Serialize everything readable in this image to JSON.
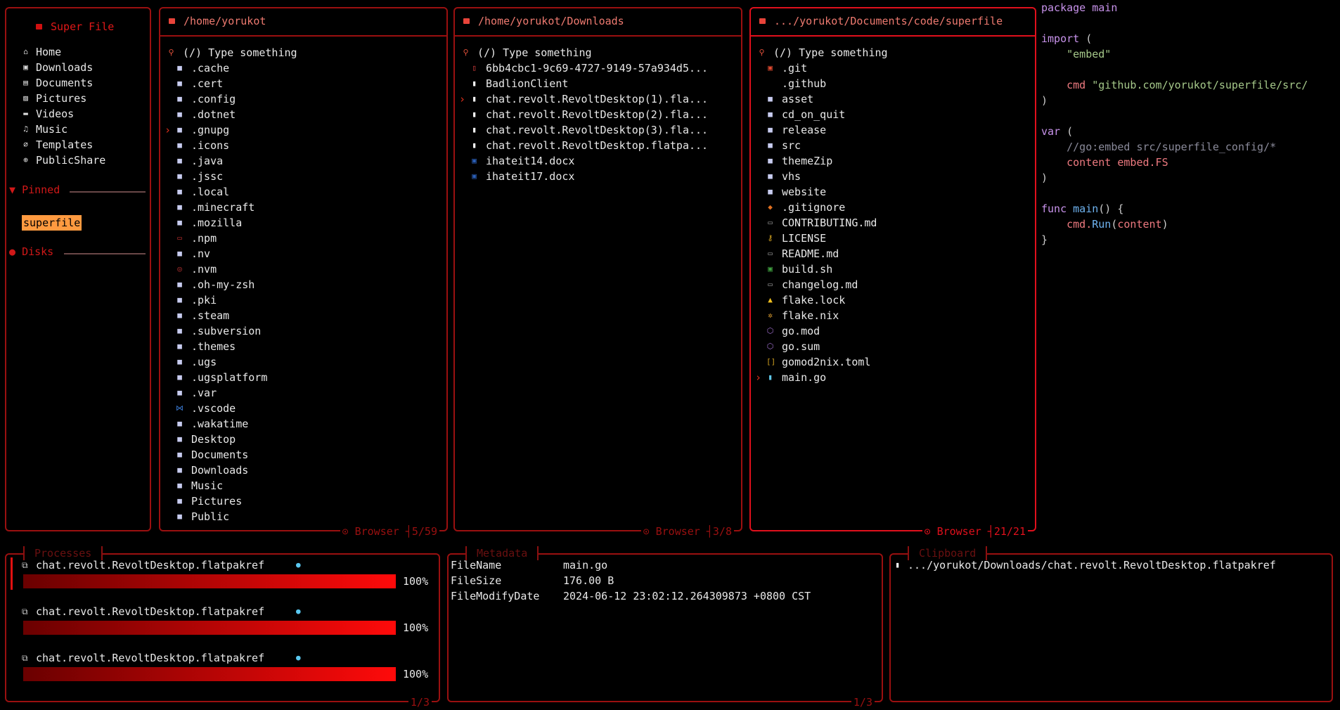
{
  "sidebar": {
    "title": "Super File",
    "items": [
      {
        "label": "Home",
        "icon": "home-icon",
        "glyph": "⌂"
      },
      {
        "label": "Downloads",
        "icon": "download-icon",
        "glyph": "▣"
      },
      {
        "label": "Documents",
        "icon": "document-icon",
        "glyph": "▤"
      },
      {
        "label": "Pictures",
        "icon": "picture-icon",
        "glyph": "▨"
      },
      {
        "label": "Videos",
        "icon": "video-icon",
        "glyph": "▬"
      },
      {
        "label": "Music",
        "icon": "music-icon",
        "glyph": "♫"
      },
      {
        "label": "Templates",
        "icon": "paperclip-icon",
        "glyph": "⌀"
      },
      {
        "label": "PublicShare",
        "icon": "globe-icon",
        "glyph": "⊕"
      }
    ],
    "pinned_label": "Pinned",
    "pinned": [
      "superfile"
    ],
    "disks_label": "Disks"
  },
  "search_placeholder": "(/) Type something",
  "panels": [
    {
      "title": "/home/yorukot",
      "footer_label": "Browser",
      "count": "5/59",
      "focused": false,
      "cursor": 4,
      "files": [
        ".cache",
        ".cert",
        ".config",
        ".dotnet",
        ".gnupg",
        ".icons",
        ".java",
        ".jssc",
        ".local",
        ".minecraft",
        ".mozilla",
        ".npm",
        ".nv",
        ".nvm",
        ".oh-my-zsh",
        ".pki",
        ".steam",
        ".subversion",
        ".themes",
        ".ugs",
        ".ugsplatform",
        ".var",
        ".vscode",
        ".wakatime",
        "Desktop",
        "Documents",
        "Downloads",
        "Music",
        "Pictures",
        "Public"
      ],
      "icons": {
        ".npm": [
          "npm-icon",
          "▭",
          "#c03030"
        ],
        ".nvm": [
          "node-icon",
          "◎",
          "#b03030"
        ],
        ".vscode": [
          "vscode-icon",
          "⋈",
          "#3a7bd5"
        ]
      }
    },
    {
      "title": "/home/yorukot/Downloads",
      "footer_label": "Browser",
      "count": "3/8",
      "focused": false,
      "cursor": 2,
      "files": [
        "6bb4cbc1-9c69-4727-9149-57a934d5...",
        "BadlionClient",
        "chat.revolt.RevoltDesktop(1).fla...",
        "chat.revolt.RevoltDesktop(2).fla...",
        "chat.revolt.RevoltDesktop(3).fla...",
        "chat.revolt.RevoltDesktop.flatpa...",
        "ihateit14.docx",
        "ihateit17.docx"
      ],
      "icons": {
        "6bb4cbc1-9c69-4727-9149-57a934d5...": [
          "pdf-icon",
          "▯",
          "#e04040"
        ],
        "BadlionClient": [
          "file-icon",
          "▮",
          "#ffffff"
        ],
        "chat.revolt.RevoltDesktop(1).fla...": [
          "file-icon",
          "▮",
          "#ffffff"
        ],
        "chat.revolt.RevoltDesktop(2).fla...": [
          "file-icon",
          "▮",
          "#ffffff"
        ],
        "chat.revolt.RevoltDesktop(3).fla...": [
          "file-icon",
          "▮",
          "#ffffff"
        ],
        "chat.revolt.RevoltDesktop.flatpa...": [
          "file-icon",
          "▮",
          "#ffffff"
        ],
        "ihateit14.docx": [
          "word-icon",
          "▣",
          "#2b5fb8"
        ],
        "ihateit17.docx": [
          "word-icon",
          "▣",
          "#2b5fb8"
        ]
      }
    },
    {
      "title": ".../yorukot/Documents/code/superfile",
      "footer_label": "Browser",
      "count": "21/21",
      "focused": true,
      "cursor": 20,
      "files": [
        ".git",
        ".github",
        "asset",
        "cd_on_quit",
        "release",
        "src",
        "themeZip",
        "vhs",
        "website",
        ".gitignore",
        "CONTRIBUTING.md",
        "LICENSE",
        "README.md",
        "build.sh",
        "changelog.md",
        "flake.lock",
        "flake.nix",
        "go.mod",
        "go.sum",
        "gomod2nix.toml",
        "main.go"
      ],
      "icons": {
        ".git": [
          "git-folder-icon",
          "▣",
          "#e04a30"
        ],
        ".github": [
          "github-icon",
          " ",
          "#fff"
        ],
        ".gitignore": [
          "git-icon",
          "◆",
          "#e07020"
        ],
        "CONTRIBUTING.md": [
          "markdown-icon",
          "▭",
          "#9a9a9a"
        ],
        "LICENSE": [
          "key-icon",
          "⚷",
          "#d0a020"
        ],
        "README.md": [
          "markdown-icon",
          "▭",
          "#9a9a9a"
        ],
        "build.sh": [
          "terminal-icon",
          "▣",
          "#40a040"
        ],
        "changelog.md": [
          "markdown-icon",
          "▭",
          "#9a9a9a"
        ],
        "flake.lock": [
          "lock-icon",
          "▲",
          "#f0c020"
        ],
        "flake.nix": [
          "nix-icon",
          "✲",
          "#e0a030"
        ],
        "go.mod": [
          "go-mod-icon",
          "⬡",
          "#a070d0"
        ],
        "go.sum": [
          "go-sum-icon",
          "⬡",
          "#a070d0"
        ],
        "gomod2nix.toml": [
          "toml-icon",
          "[]",
          "#d0a020"
        ],
        "main.go": [
          "go-icon",
          "▮",
          "#60c8e8"
        ]
      }
    }
  ],
  "folder_color": "#c8ccf0",
  "preview": [
    [
      [
        "package ",
        "#c792ea"
      ],
      [
        "main",
        "#c792ea"
      ]
    ],
    [],
    [
      [
        "import ",
        "#c792ea"
      ],
      [
        "(",
        "#ccc"
      ]
    ],
    [
      [
        "    \"embed\"",
        "#a6c98a"
      ]
    ],
    [],
    [
      [
        "    cmd ",
        "#ee7a80"
      ],
      [
        "\"github.com/yorukot/superfile/src/",
        "#a6c98a"
      ]
    ],
    [
      [
        ")",
        "#ccc"
      ]
    ],
    [],
    [
      [
        "var ",
        "#c792ea"
      ],
      [
        "(",
        "#ccc"
      ]
    ],
    [
      [
        "    //go:embed src/superfile_config/*",
        "#8a8a9a"
      ]
    ],
    [
      [
        "    content ",
        "#ee7a80"
      ],
      [
        "embed.FS",
        "#ee7a80"
      ]
    ],
    [
      [
        ")",
        "#ccc"
      ]
    ],
    [],
    [
      [
        "func ",
        "#c792ea"
      ],
      [
        "main",
        "#6fb3f0"
      ],
      [
        "() {",
        "#ccc"
      ]
    ],
    [
      [
        "    cmd.",
        "#ee7a80"
      ],
      [
        "Run",
        "#6fb3f0"
      ],
      [
        "(",
        "#ccc"
      ],
      [
        "content",
        "#ee7a80"
      ],
      [
        ")",
        "#ccc"
      ]
    ],
    [
      [
        "}",
        "#ccc"
      ]
    ]
  ],
  "processes": {
    "title": "Processes",
    "count": "1/3",
    "items": [
      {
        "name": "chat.revolt.RevoltDesktop.flatpakref",
        "progress": 100,
        "label": "100%"
      },
      {
        "name": "chat.revolt.RevoltDesktop.flatpakref",
        "progress": 100,
        "label": "100%"
      },
      {
        "name": "chat.revolt.RevoltDesktop.flatpakref",
        "progress": 100,
        "label": "100%"
      }
    ]
  },
  "metadata": {
    "title": "Metadata",
    "count": "1/3",
    "rows": [
      {
        "key": "FileName",
        "value": "main.go"
      },
      {
        "key": "FileSize",
        "value": "176.00 B"
      },
      {
        "key": "FileModifyDate",
        "value": "2024-06-12 23:02:12.264309873 +0800 CST"
      }
    ]
  },
  "clipboard": {
    "title": "Clipboard",
    "items": [
      ".../yorukot/Downloads/chat.revolt.RevoltDesktop.flatpakref"
    ]
  }
}
